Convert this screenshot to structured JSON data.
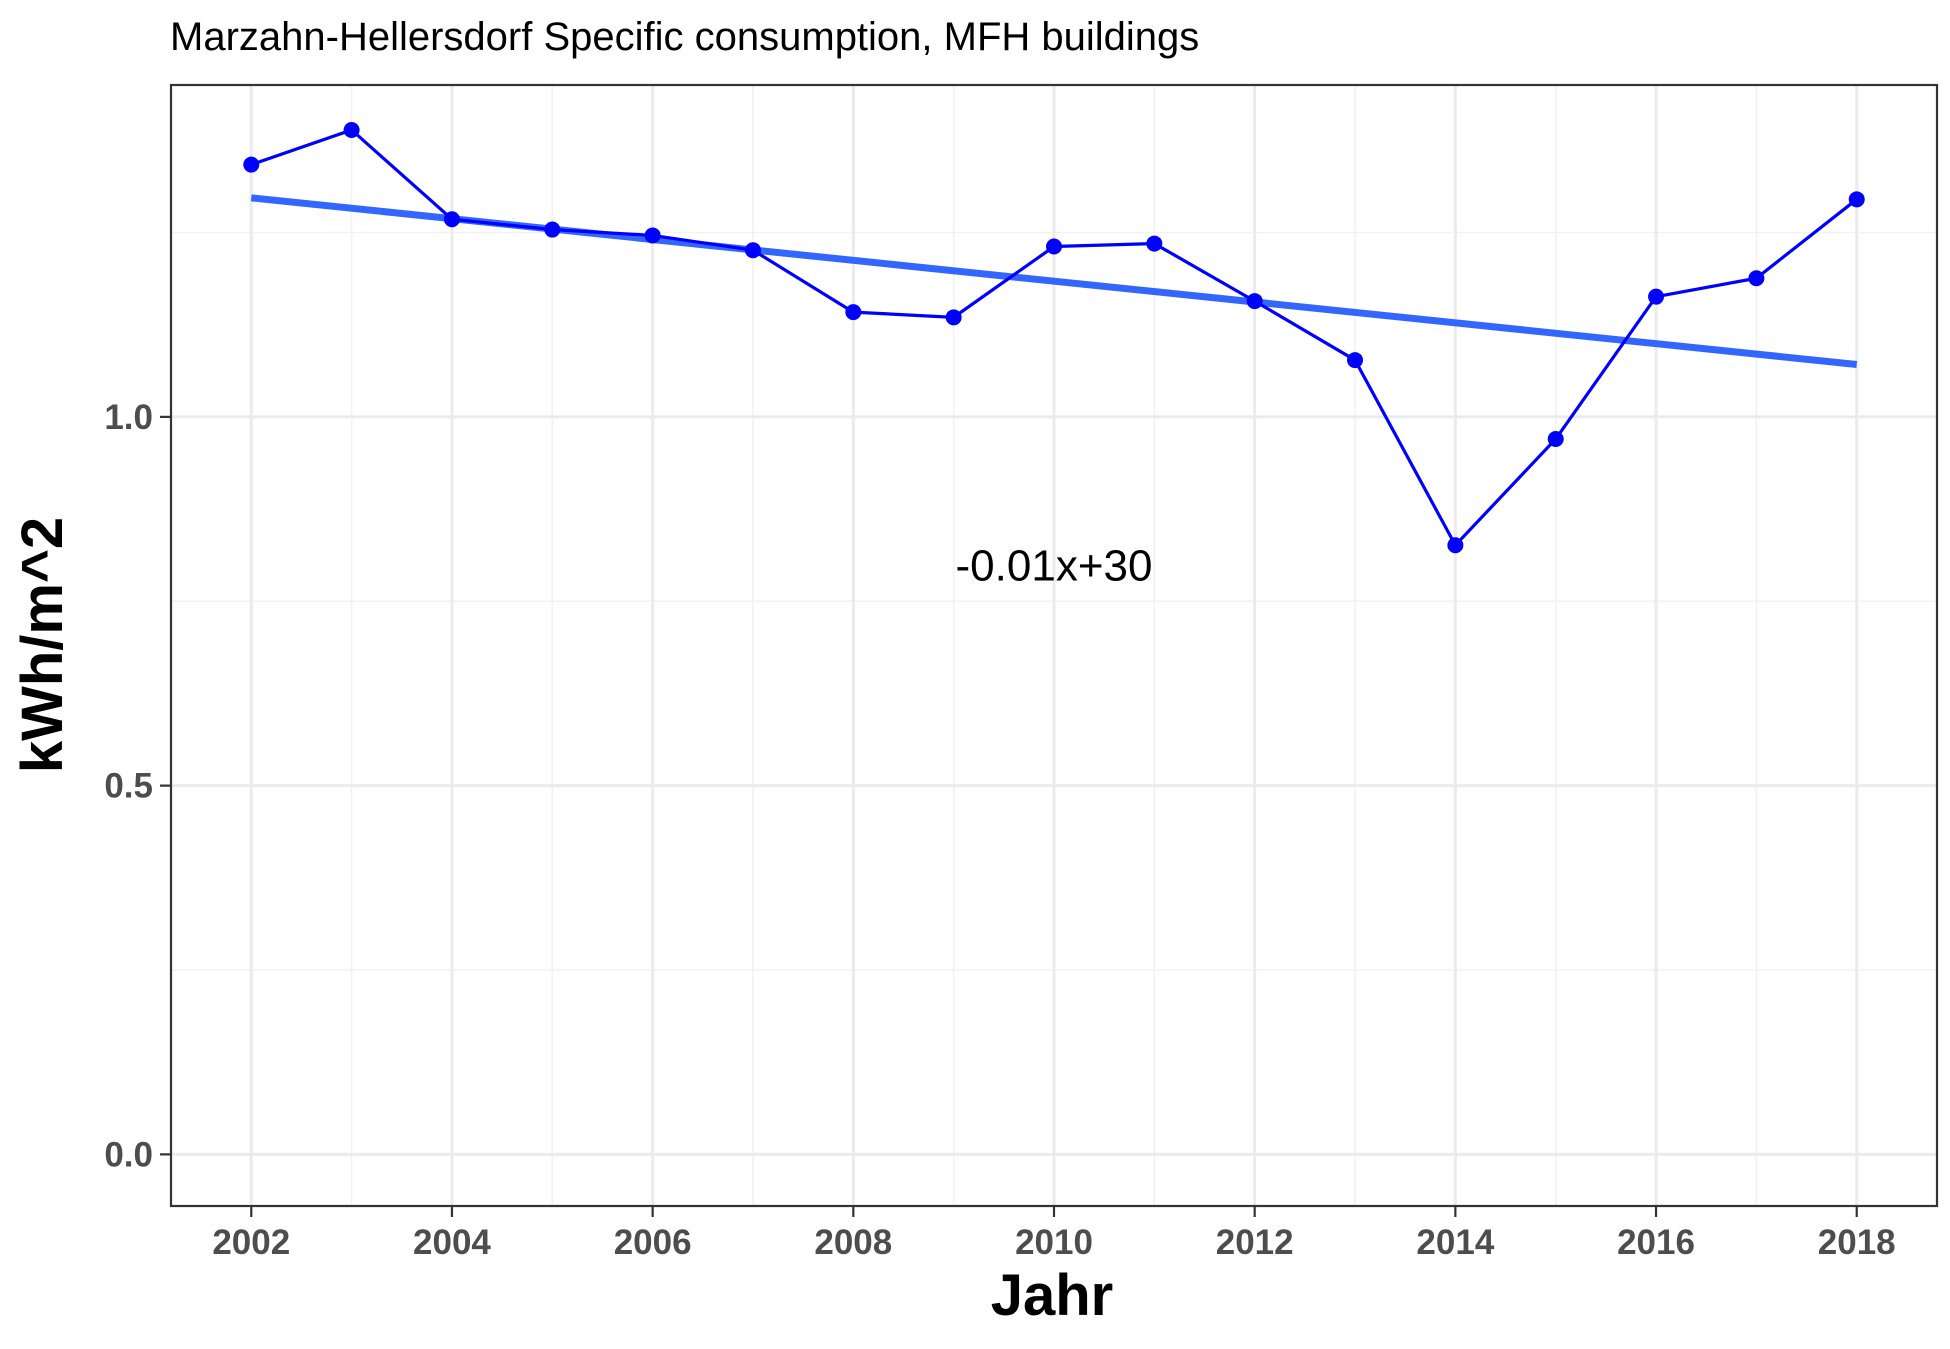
{
  "chart_data": {
    "type": "line",
    "title": "Marzahn-Hellersdorf Specific consumption, MFH buildings",
    "xlabel": "Jahr",
    "ylabel": "kWh/m^2",
    "xlim": [
      2001.2,
      2018.8
    ],
    "ylim": [
      -0.07,
      1.45
    ],
    "x_ticks": [
      2002,
      2004,
      2006,
      2008,
      2010,
      2012,
      2014,
      2016,
      2018
    ],
    "x_tick_labels": [
      "2002",
      "2004",
      "2006",
      "2008",
      "2010",
      "2012",
      "2014",
      "2016",
      "2018"
    ],
    "y_ticks": [
      0.0,
      0.5,
      1.0
    ],
    "y_tick_labels": [
      "0.0",
      "0.5",
      "1.0"
    ],
    "grid": true,
    "series": [
      {
        "x": [
          2002,
          2003,
          2004,
          2005,
          2006,
          2007,
          2008,
          2009,
          2010,
          2011,
          2012,
          2013,
          2014,
          2015,
          2016,
          2017,
          2018
        ],
        "y": [
          1.342,
          1.389,
          1.268,
          1.254,
          1.246,
          1.226,
          1.142,
          1.135,
          1.231,
          1.235,
          1.157,
          1.077,
          0.826,
          0.97,
          1.163,
          1.188,
          1.295
        ],
        "color": "#0000ff"
      }
    ],
    "trend": {
      "x": [
        2002,
        2018
      ],
      "y": [
        1.297,
        1.071
      ],
      "color": "#3366ff"
    },
    "annotation": {
      "text": "-0.01x+30",
      "x": 2010,
      "y": 0.8
    }
  }
}
